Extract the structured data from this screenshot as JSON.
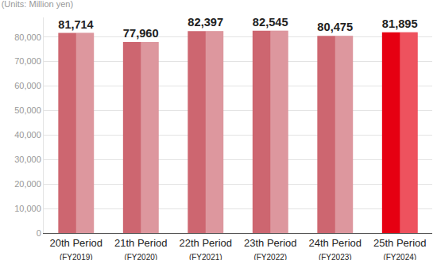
{
  "chart_data": {
    "type": "bar",
    "y_label": "(Units: Million yen)",
    "categories": [
      "20th Period\n(FY2019)",
      "21th Period\n(FY2020)",
      "22th Period\n(FY2021)",
      "23th Period\n(FY2022)",
      "24th Period\n(FY2023)",
      "25th Period\n(FY2024)"
    ],
    "values": [
      81714,
      77960,
      82397,
      82545,
      80475,
      81895
    ],
    "value_labels": [
      "81,714",
      "77,960",
      "82,397",
      "82,545",
      "80,475",
      "81,895"
    ],
    "colors": [
      "#cd6670",
      "#cd6670",
      "#cd6670",
      "#cd6670",
      "#cd6670",
      "#e60012"
    ],
    "data_labels": true,
    "grid": true,
    "ylim": [
      0,
      88000
    ],
    "yticks": [
      0,
      {
        "value": 10000,
        "label": "10,000"
      },
      {
        "value": 20000,
        "label": "20,000"
      },
      {
        "value": 30000,
        "label": "30,000"
      },
      {
        "value": 40000,
        "label": "40,000"
      },
      {
        "value": 50000,
        "label": "50,000"
      },
      {
        "value": 60000,
        "label": "60,000"
      },
      {
        "value": 70000,
        "label": "70,000"
      },
      {
        "value": 80000,
        "label": "80,000"
      }
    ]
  }
}
